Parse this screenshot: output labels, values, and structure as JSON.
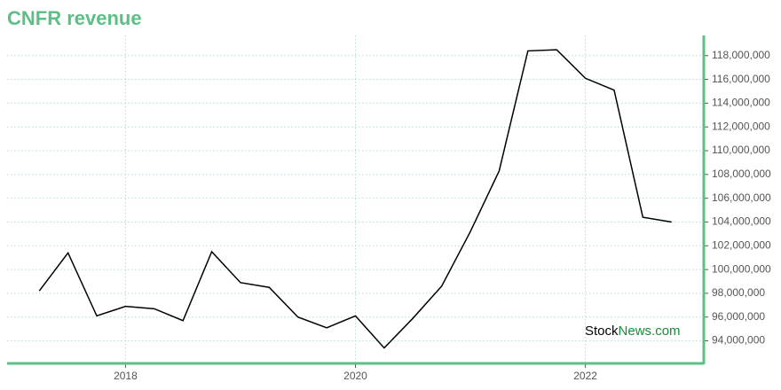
{
  "chart_data": {
    "type": "line",
    "title": "CNFR revenue",
    "watermark": {
      "first": "Stock",
      "second": "News.com"
    },
    "x": [
      2017.25,
      2017.5,
      2017.75,
      2018,
      2018.25,
      2018.5,
      2018.75,
      2019,
      2019.25,
      2019.5,
      2019.75,
      2020,
      2020.25,
      2020.5,
      2020.75,
      2021,
      2021.25,
      2021.5,
      2021.75,
      2022,
      2022.25,
      2022.5,
      2022.75
    ],
    "series": [
      {
        "color": "#000000",
        "values": [
          98200000,
          101400000,
          96100000,
          96900000,
          96700000,
          95700000,
          101500000,
          98900000,
          98500000,
          96000000,
          95100000,
          96100000,
          93400000,
          95900000,
          98600000,
          103200000,
          108300000,
          118400000,
          118500000,
          116100000,
          115100000,
          104400000,
          104000000
        ]
      }
    ],
    "xlim": [
      2016.97,
      2023.03
    ],
    "xticks": [
      2018,
      2020,
      2022
    ],
    "ylim": [
      92100000,
      119700000
    ],
    "yticks": [
      {
        "value": 94000000,
        "label": "94,000,000"
      },
      {
        "value": 96000000,
        "label": "96,000,000"
      },
      {
        "value": 98000000,
        "label": "98,000,000"
      },
      {
        "value": 100000000,
        "label": "100,000,000"
      },
      {
        "value": 102000000,
        "label": "102,000,000"
      },
      {
        "value": 104000000,
        "label": "104,000,000"
      },
      {
        "value": 106000000,
        "label": "106,000,000"
      },
      {
        "value": 108000000,
        "label": "108,000,000"
      },
      {
        "value": 110000000,
        "label": "110,000,000"
      },
      {
        "value": 112000000,
        "label": "112,000,000"
      },
      {
        "value": 114000000,
        "label": "114,000,000"
      },
      {
        "value": 116000000,
        "label": "116,000,000"
      },
      {
        "value": 118000000,
        "label": "118,000,000"
      }
    ],
    "grid": true,
    "axis_color": "#5cbf86"
  }
}
